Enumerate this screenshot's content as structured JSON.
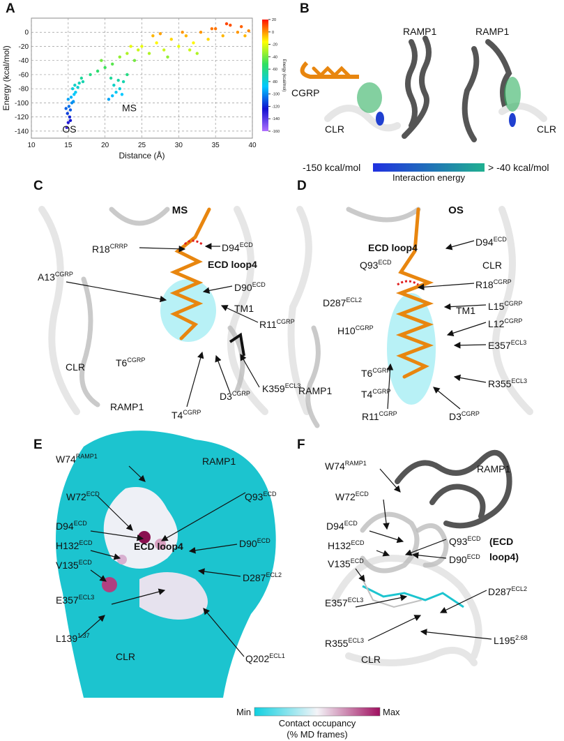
{
  "chart_data": {
    "type": "scatter",
    "xlabel": "Distance (Å)",
    "ylabel": "Energy (kcal/mol)",
    "x": [
      14.8,
      15.0,
      15.2,
      14.9,
      15.3,
      15.1,
      15.5,
      15.0,
      15.4,
      15.8,
      16.0,
      15.6,
      16.3,
      15.9,
      16.5,
      17.0,
      16.8,
      15.3,
      14.7,
      15.7,
      20.5,
      21.0,
      21.5,
      22.0,
      21.2,
      22.5,
      20.8,
      23.0,
      21.8,
      22.3,
      18,
      19,
      20,
      19.5,
      21,
      22,
      23,
      24,
      23.5,
      24.5,
      25,
      26,
      27,
      28,
      29,
      30,
      31,
      32,
      33,
      34,
      35,
      36,
      37,
      38,
      39,
      26.5,
      28.5,
      30.5,
      32.5,
      34.5,
      36.5,
      38.5,
      39.5,
      27.5,
      31.5
    ],
    "values": [
      -135,
      -128,
      -120,
      -115,
      -110,
      -105,
      -100,
      -95,
      -92,
      -88,
      -85,
      -80,
      -78,
      -75,
      -72,
      -70,
      -65,
      -125,
      -108,
      -98,
      -95,
      -90,
      -85,
      -80,
      -75,
      -70,
      -65,
      -60,
      -68,
      -88,
      -60,
      -55,
      -50,
      -40,
      -45,
      -35,
      -30,
      -40,
      -20,
      -25,
      -20,
      -30,
      -15,
      -25,
      -10,
      -20,
      -5,
      -15,
      0,
      -10,
      5,
      -5,
      10,
      0,
      -5,
      -5,
      -35,
      0,
      -30,
      5,
      12,
      8,
      2,
      -2,
      -25
    ],
    "xlim": [
      10,
      40
    ],
    "xticks": [
      10,
      15,
      20,
      25,
      30,
      35,
      40
    ],
    "ylim": [
      -150,
      20
    ],
    "yticks": [
      0,
      -20,
      -40,
      -60,
      -80,
      -100,
      -120,
      -140
    ],
    "grid": true,
    "annotations": [
      "OS",
      "MS"
    ],
    "colormap": [
      "#b070ff",
      "#1010d0",
      "#00c8ff",
      "#30e060",
      "#ffff00",
      "#ff1000"
    ],
    "colorbar": {
      "label": "Energy (kcal/mol)",
      "lim": [
        -160,
        20
      ],
      "ticks": [
        20,
        0,
        -20,
        -40,
        -60,
        -80,
        -100,
        -120,
        -140,
        -160
      ]
    }
  },
  "panels": {
    "A": {
      "label": "A"
    },
    "B": {
      "label": "B",
      "texts": [
        {
          "text": "RAMP1"
        },
        {
          "text": "RAMP1"
        },
        {
          "text": "CGRP"
        },
        {
          "text": "CLR"
        },
        {
          "text": "CLR"
        }
      ],
      "scale": {
        "min": "-150 kcal/mol",
        "max": "> -40 kcal/mol",
        "title": "Interaction energy"
      }
    },
    "C": {
      "label": "C",
      "title": "MS",
      "labels": [
        {
          "text": "R18",
          "sup": "CRRP"
        },
        {
          "text": "D94",
          "sup": "ECD"
        },
        {
          "text": "ECD loop4",
          "bold": true
        },
        {
          "text": "A13",
          "sup": "CGRP"
        },
        {
          "text": "D90",
          "sup": "ECD"
        },
        {
          "text": "TM1"
        },
        {
          "text": "R11",
          "sup": "CGRP"
        },
        {
          "text": "T6",
          "sup": "CGRP"
        },
        {
          "text": "CLR"
        },
        {
          "text": "K359",
          "sup": "ECL3"
        },
        {
          "text": "D3",
          "sup": "CGRP"
        },
        {
          "text": "RAMP1"
        },
        {
          "text": "T4",
          "sup": "CGRP"
        }
      ]
    },
    "D": {
      "label": "D",
      "title": "OS",
      "labels": [
        {
          "text": "D94",
          "sup": "ECD"
        },
        {
          "text": "ECD loop4",
          "bold": true
        },
        {
          "text": "Q93",
          "sup": "ECD"
        },
        {
          "text": "CLR"
        },
        {
          "text": "R18",
          "sup": "CGRP"
        },
        {
          "text": "D287",
          "sup": "ECL2"
        },
        {
          "text": "TM1"
        },
        {
          "text": "L15",
          "sup": "CGRP"
        },
        {
          "text": "L12",
          "sup": "CGRP"
        },
        {
          "text": "H10",
          "sup": "CGRP"
        },
        {
          "text": "E357",
          "sup": "ECL3"
        },
        {
          "text": "T6",
          "sup": "CGRP"
        },
        {
          "text": "R355",
          "sup": "ECL3"
        },
        {
          "text": "RAMP1"
        },
        {
          "text": "T4",
          "sup": "CGRP"
        },
        {
          "text": "R11",
          "sup": "CGRP"
        },
        {
          "text": "D3",
          "sup": "CGRP"
        }
      ]
    },
    "E": {
      "label": "E",
      "labels": [
        {
          "text": "W74",
          "sup": "RAMP1"
        },
        {
          "text": "RAMP1"
        },
        {
          "text": "W72",
          "sup": "ECD"
        },
        {
          "text": "Q93",
          "sup": "ECD"
        },
        {
          "text": "D94",
          "sup": "ECD"
        },
        {
          "text": "H132",
          "sup": "ECD"
        },
        {
          "text": "ECD loop4",
          "bold": true
        },
        {
          "text": "D90",
          "sup": "ECD"
        },
        {
          "text": "V135",
          "sup": "ECD"
        },
        {
          "text": "D287",
          "sup": "ECL2"
        },
        {
          "text": "E357",
          "sup": "ECL3"
        },
        {
          "text": "L139",
          "sup": "1.37"
        },
        {
          "text": "CLR"
        },
        {
          "text": "Q202",
          "sup": "ECL1"
        }
      ]
    },
    "F": {
      "label": "F",
      "labels": [
        {
          "text": "W74",
          "sup": "RAMP1"
        },
        {
          "text": "RAMP1"
        },
        {
          "text": "W72",
          "sup": "ECD"
        },
        {
          "text": "D94",
          "sup": "ECD"
        },
        {
          "text": "Q93",
          "sup": "ECD"
        },
        {
          "text": "(ECD",
          "bold": true
        },
        {
          "text": "loop4)",
          "bold": true
        },
        {
          "text": "H132",
          "sup": "ECD"
        },
        {
          "text": "D90",
          "sup": "ECD"
        },
        {
          "text": "V135",
          "sup": "ECD"
        },
        {
          "text": "D287",
          "sup": "ECL2"
        },
        {
          "text": "E357",
          "sup": "ECL3"
        },
        {
          "text": "R355",
          "sup": "ECL3"
        },
        {
          "text": "L195",
          "sup": "2.68"
        },
        {
          "text": "CLR"
        }
      ]
    }
  },
  "legend": {
    "min": "Min",
    "max": "Max",
    "title": "Contact occupancy",
    "subtitle": "(% MD frames)"
  }
}
